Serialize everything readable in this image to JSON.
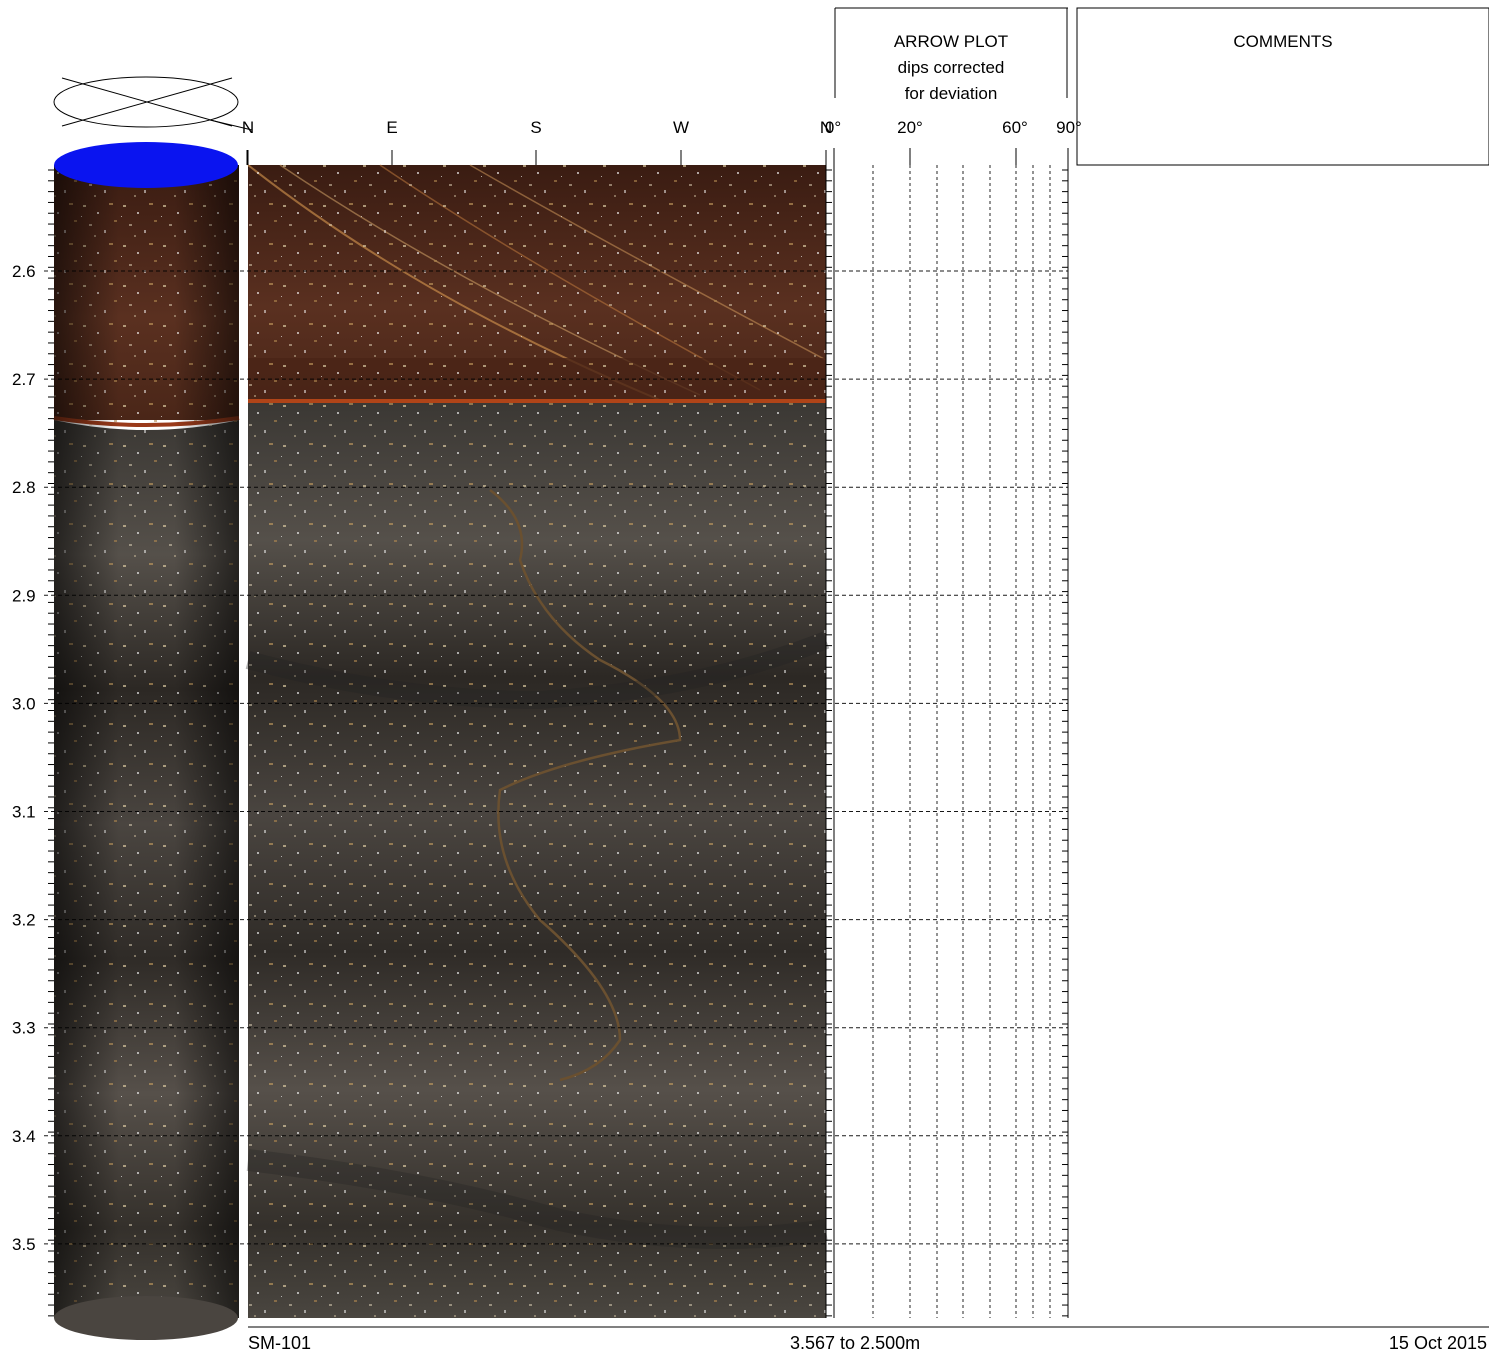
{
  "header": {
    "arrow_plot_title": [
      "ARROW PLOT",
      "dips corrected",
      "for deviation"
    ],
    "comments_title": "COMMENTS"
  },
  "compass_labels": [
    "N",
    "E",
    "S",
    "W",
    "N"
  ],
  "dip_scale_labels": [
    "0°",
    "20°",
    "60°",
    "90°"
  ],
  "depth_labels": [
    "2.6",
    "2.7",
    "2.8",
    "2.9",
    "3.0",
    "3.1",
    "3.2",
    "3.3",
    "3.4",
    "3.5"
  ],
  "footer": {
    "hole_id": "SM-101",
    "depth_range": "3.567 to 2.500m",
    "date": "15 Oct 2015"
  },
  "colors": {
    "core_top": "#0a14f0",
    "rock_dark": "#2e2a26",
    "rock_brown": "#5a3020"
  }
}
